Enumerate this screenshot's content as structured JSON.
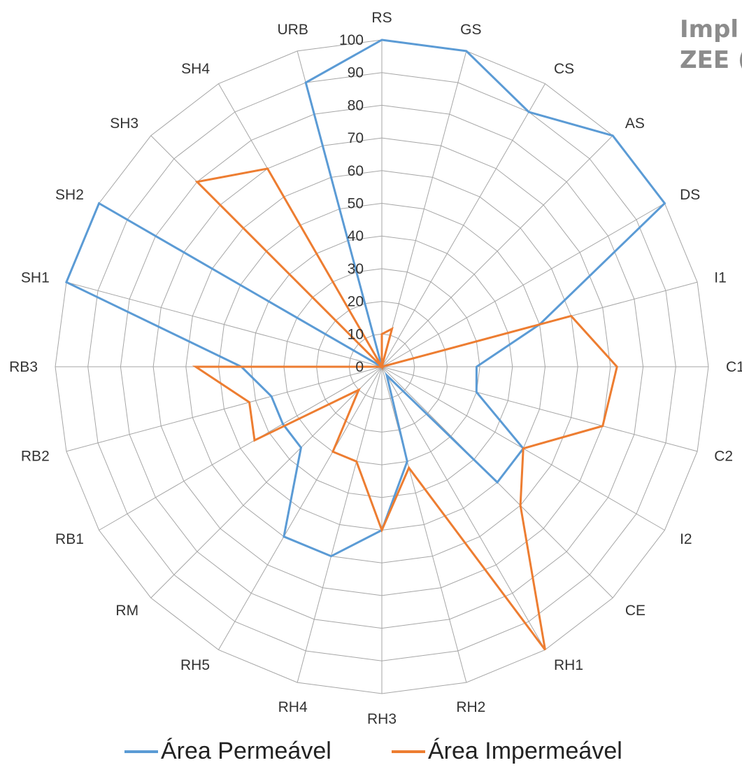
{
  "chart_data": {
    "type": "radar",
    "title_lines": [
      "Impl",
      "ZEE ("
    ],
    "categories": [
      "RS",
      "GS",
      "CS",
      "AS",
      "DS",
      "I1",
      "C1",
      "C2",
      "I2",
      "CE",
      "RH1",
      "RH2",
      "RH3",
      "RH4",
      "RH5",
      "RM",
      "RB1",
      "RB2",
      "RB3",
      "SH1",
      "SH2",
      "SH3",
      "SH4",
      "URB"
    ],
    "r_axis": {
      "min": 0,
      "max": 100,
      "step": 10,
      "ticks": [
        "0",
        "10",
        "20",
        "30",
        "40",
        "50",
        "60",
        "70",
        "80",
        "90",
        "100"
      ]
    },
    "grid": true,
    "legend_position": "bottom",
    "series": [
      {
        "name": "Área Permeável",
        "color": "#5b9bd5",
        "values": [
          100,
          100,
          90,
          100,
          100,
          50,
          29,
          30,
          50,
          50,
          3,
          30,
          50,
          60,
          60,
          35,
          35,
          35,
          43,
          100,
          100,
          0,
          0,
          90
        ]
      },
      {
        "name": "Área Impermeável",
        "color": "#ed7d31",
        "values": [
          10,
          12,
          0,
          0,
          0,
          60,
          72,
          70,
          50,
          60,
          100,
          32,
          50,
          30,
          30,
          10,
          45,
          42,
          57,
          0,
          0,
          80,
          70,
          0
        ]
      }
    ]
  }
}
